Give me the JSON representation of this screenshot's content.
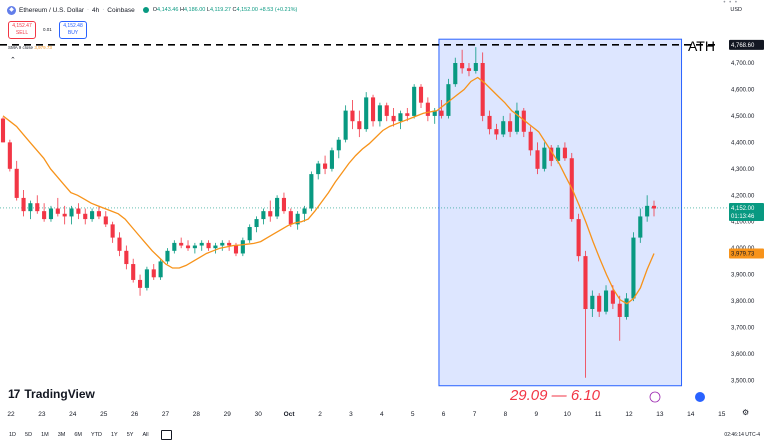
{
  "header": {
    "symbol_icon": "ethereum-icon",
    "title": "Ethereum / U.S. Dollar",
    "interval": "4h",
    "exchange": "Coinbase",
    "ohlc": {
      "o_label": "O",
      "o": "4,143.46",
      "h_label": "H",
      "h": "4,186.00",
      "l_label": "L",
      "l": "4,119.27",
      "c_label": "C",
      "c": "4,152.00",
      "change": "+8.53 (+0.21%)"
    },
    "currency": "USD"
  },
  "trade": {
    "sell_price": "4,152.47",
    "sell_label": "SELL",
    "spread": "0.01",
    "buy_price": "4,152.48",
    "buy_label": "BUY"
  },
  "indicator": {
    "name": "SMA",
    "params": "9 close",
    "value": "3,979.73"
  },
  "brand": {
    "name": "TradingView"
  },
  "range_buttons": [
    "1D",
    "5D",
    "1M",
    "3M",
    "6M",
    "YTD",
    "1Y",
    "5Y",
    "All"
  ],
  "clock": "02:46:14 UTC-4",
  "colors": {
    "up": "#089981",
    "down": "#f23645",
    "sma": "#f7931a",
    "highlight": "#2962ff",
    "annotation": "#f23645"
  },
  "chart_data": {
    "type": "candlestick",
    "x_ticks": [
      "22",
      "23",
      "24",
      "25",
      "26",
      "27",
      "28",
      "29",
      "30",
      "Oct",
      "2",
      "3",
      "4",
      "5",
      "6",
      "7",
      "8",
      "9",
      "10",
      "11",
      "12",
      "13",
      "14",
      "15"
    ],
    "y_ticks": [
      "3,500.00",
      "3,600.00",
      "3,700.00",
      "3,800.00",
      "3,900.00",
      "4,000.00",
      "4,100.00",
      "4,200.00",
      "4,300.00",
      "4,400.00",
      "4,500.00",
      "4,600.00",
      "4,700.00"
    ],
    "ylim": [
      3460,
      4810
    ],
    "ath": {
      "label": "ATH",
      "value": 4768.6,
      "value_label": "4,768.60"
    },
    "current_price": {
      "value": 4152.0,
      "label": "4,152.00",
      "countdown": "01:13:46"
    },
    "sma_last": {
      "value": 3979.73,
      "label": "3,979.73"
    },
    "highlight": {
      "from_day": 6,
      "to_day": 13,
      "label": "29.09 — 6.10"
    },
    "series": [
      {
        "name": "ETHUSD",
        "candles": [
          [
            4490,
            4495,
            4400,
            4400
          ],
          [
            4400,
            4410,
            4290,
            4300
          ],
          [
            4300,
            4330,
            4180,
            4190
          ],
          [
            4190,
            4220,
            4120,
            4140
          ],
          [
            4140,
            4180,
            4110,
            4170
          ],
          [
            4170,
            4200,
            4130,
            4140
          ],
          [
            4140,
            4170,
            4100,
            4110
          ],
          [
            4110,
            4160,
            4100,
            4150
          ],
          [
            4150,
            4190,
            4120,
            4130
          ],
          [
            4130,
            4160,
            4090,
            4120
          ],
          [
            4120,
            4160,
            4090,
            4150
          ],
          [
            4150,
            4170,
            4110,
            4130
          ],
          [
            4130,
            4150,
            4090,
            4110
          ],
          [
            4110,
            4150,
            4100,
            4140
          ],
          [
            4140,
            4160,
            4110,
            4120
          ],
          [
            4120,
            4140,
            4080,
            4090
          ],
          [
            4090,
            4100,
            4020,
            4040
          ],
          [
            4040,
            4060,
            3970,
            3990
          ],
          [
            3990,
            4010,
            3920,
            3940
          ],
          [
            3940,
            3960,
            3870,
            3880
          ],
          [
            3880,
            3900,
            3820,
            3850
          ],
          [
            3850,
            3930,
            3840,
            3920
          ],
          [
            3920,
            3940,
            3880,
            3890
          ],
          [
            3890,
            3960,
            3880,
            3950
          ],
          [
            3950,
            4000,
            3940,
            3990
          ],
          [
            3990,
            4030,
            3980,
            4020
          ],
          [
            4020,
            4040,
            4000,
            4010
          ],
          [
            4010,
            4030,
            3990,
            4000
          ],
          [
            4000,
            4020,
            3980,
            4010
          ],
          [
            4010,
            4030,
            3990,
            4020
          ],
          [
            4020,
            4030,
            3990,
            4000
          ],
          [
            4000,
            4020,
            3980,
            4010
          ],
          [
            4010,
            4030,
            3990,
            4020
          ],
          [
            4020,
            4030,
            3990,
            4010
          ],
          [
            4010,
            4020,
            3970,
            3980
          ],
          [
            3980,
            4040,
            3970,
            4030
          ],
          [
            4030,
            4090,
            4020,
            4080
          ],
          [
            4080,
            4120,
            4060,
            4110
          ],
          [
            4110,
            4150,
            4090,
            4140
          ],
          [
            4140,
            4180,
            4100,
            4120
          ],
          [
            4120,
            4200,
            4110,
            4190
          ],
          [
            4190,
            4210,
            4130,
            4140
          ],
          [
            4140,
            4150,
            4080,
            4090
          ],
          [
            4090,
            4140,
            4070,
            4130
          ],
          [
            4130,
            4160,
            4100,
            4150
          ],
          [
            4150,
            4290,
            4140,
            4280
          ],
          [
            4280,
            4330,
            4260,
            4320
          ],
          [
            4320,
            4350,
            4280,
            4300
          ],
          [
            4300,
            4380,
            4290,
            4370
          ],
          [
            4370,
            4420,
            4340,
            4410
          ],
          [
            4410,
            4540,
            4400,
            4520
          ],
          [
            4520,
            4560,
            4450,
            4480
          ],
          [
            4480,
            4520,
            4420,
            4450
          ],
          [
            4450,
            4590,
            4440,
            4570
          ],
          [
            4570,
            4580,
            4460,
            4480
          ],
          [
            4480,
            4550,
            4460,
            4540
          ],
          [
            4540,
            4550,
            4480,
            4500
          ],
          [
            4500,
            4530,
            4460,
            4480
          ],
          [
            4480,
            4520,
            4450,
            4510
          ],
          [
            4510,
            4530,
            4480,
            4500
          ],
          [
            4500,
            4620,
            4490,
            4610
          ],
          [
            4610,
            4620,
            4530,
            4550
          ],
          [
            4550,
            4570,
            4480,
            4500
          ],
          [
            4500,
            4530,
            4470,
            4520
          ],
          [
            4520,
            4560,
            4490,
            4500
          ],
          [
            4500,
            4640,
            4490,
            4620
          ],
          [
            4620,
            4720,
            4610,
            4700
          ],
          [
            4700,
            4750,
            4660,
            4680
          ],
          [
            4680,
            4700,
            4650,
            4670
          ],
          [
            4670,
            4760,
            4660,
            4700
          ],
          [
            4700,
            4740,
            4480,
            4500
          ],
          [
            4500,
            4520,
            4430,
            4450
          ],
          [
            4450,
            4470,
            4410,
            4430
          ],
          [
            4430,
            4500,
            4420,
            4480
          ],
          [
            4480,
            4510,
            4420,
            4440
          ],
          [
            4440,
            4550,
            4430,
            4520
          ],
          [
            4520,
            4530,
            4420,
            4440
          ],
          [
            4440,
            4460,
            4350,
            4370
          ],
          [
            4370,
            4400,
            4280,
            4300
          ],
          [
            4300,
            4400,
            4290,
            4380
          ],
          [
            4380,
            4390,
            4310,
            4330
          ],
          [
            4330,
            4390,
            4320,
            4380
          ],
          [
            4380,
            4400,
            4330,
            4340
          ],
          [
            4340,
            4360,
            4100,
            4110
          ],
          [
            4110,
            4130,
            3950,
            3970
          ],
          [
            3970,
            3990,
            3510,
            3770
          ],
          [
            3770,
            3840,
            3740,
            3820
          ],
          [
            3820,
            3830,
            3740,
            3760
          ],
          [
            3760,
            3860,
            3750,
            3840
          ],
          [
            3840,
            3860,
            3770,
            3790
          ],
          [
            3790,
            3820,
            3650,
            3740
          ],
          [
            3740,
            3830,
            3730,
            3810
          ],
          [
            3810,
            4060,
            3800,
            4040
          ],
          [
            4040,
            4150,
            4020,
            4120
          ],
          [
            4120,
            4200,
            4100,
            4160
          ],
          [
            4160,
            4180,
            4120,
            4150
          ]
        ],
        "sma": [
          4500,
          4480,
          4460,
          4430,
          4400,
          4370,
          4340,
          4300,
          4270,
          4240,
          4210,
          4200,
          4185,
          4170,
          4160,
          4150,
          4140,
          4130,
          4110,
          4080,
          4050,
          4020,
          3990,
          3965,
          3940,
          3925,
          3925,
          3935,
          3950,
          3965,
          3980,
          3990,
          4000,
          4005,
          4010,
          4012,
          4015,
          4018,
          4025,
          4040,
          4055,
          4070,
          4085,
          4095,
          4100,
          4110,
          4140,
          4175,
          4210,
          4250,
          4285,
          4320,
          4350,
          4375,
          4395,
          4420,
          4445,
          4460,
          4470,
          4480,
          4490,
          4500,
          4510,
          4515,
          4520,
          4540,
          4560,
          4580,
          4600,
          4630,
          4645,
          4625,
          4600,
          4575,
          4550,
          4520,
          4500,
          4480,
          4460,
          4440,
          4400,
          4360,
          4320,
          4270,
          4220,
          4160,
          4095,
          4025,
          3960,
          3900,
          3845,
          3805,
          3790,
          3810,
          3850,
          3920,
          3980
        ]
      }
    ]
  }
}
